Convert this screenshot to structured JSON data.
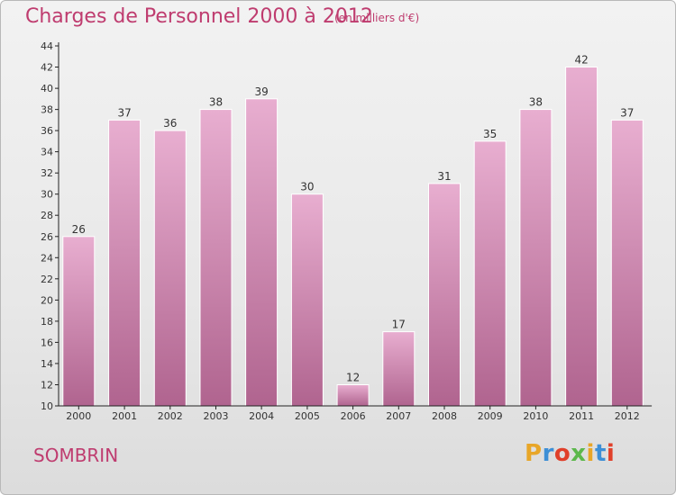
{
  "header": {
    "title": "Charges de Personnel 2000 à 2012",
    "subtitle": "(en milliers d'€)"
  },
  "footer": {
    "place": "SOMBRIN",
    "logo_letters": [
      "P",
      "r",
      "o",
      "x",
      "i",
      "t",
      "i"
    ],
    "logo_colors": [
      "#e8a628",
      "#3d8fd6",
      "#e0402a",
      "#5cb84c",
      "#e8a628",
      "#3d8fd6",
      "#e0402a"
    ]
  },
  "colors": {
    "bar_top": "#e8aed0",
    "bar_bottom": "#b0648f",
    "bar_edge": "#ffffff",
    "axis": "#222222",
    "text_accent": "#bf3c6f"
  },
  "chart_data": {
    "type": "bar",
    "title": "Charges de Personnel 2000 à 2012",
    "subtitle": "(en milliers d'€)",
    "categories": [
      "2000",
      "2001",
      "2002",
      "2003",
      "2004",
      "2005",
      "2006",
      "2007",
      "2008",
      "2009",
      "2010",
      "2011",
      "2012"
    ],
    "values": [
      26,
      37,
      36,
      38,
      39,
      30,
      12,
      17,
      31,
      35,
      38,
      42,
      37
    ],
    "ylim": [
      10,
      44
    ],
    "yticks": [
      10,
      12,
      14,
      16,
      18,
      20,
      22,
      24,
      26,
      28,
      30,
      32,
      34,
      36,
      38,
      40,
      42,
      44
    ],
    "grid": false,
    "xlabel": "",
    "ylabel": ""
  }
}
